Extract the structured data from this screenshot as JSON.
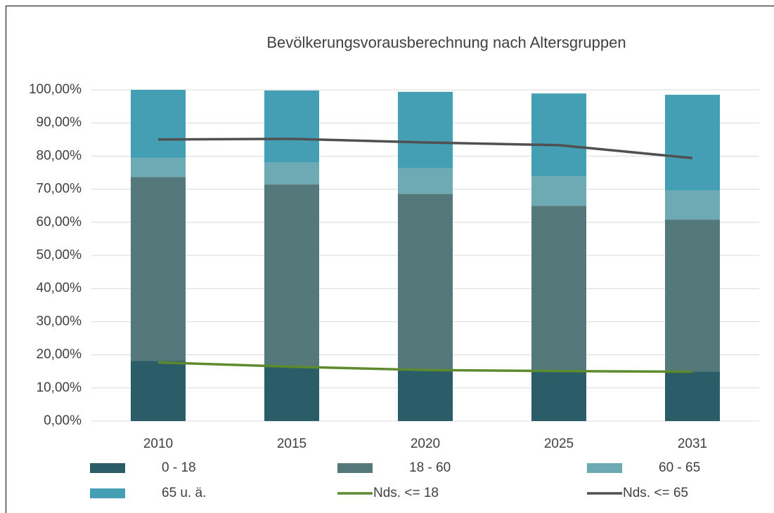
{
  "chart_data": {
    "type": "bar",
    "stacked": true,
    "title": "Bevölkerungsvorausberechnung nach Altersgruppen",
    "categories": [
      "2010",
      "2015",
      "2020",
      "2025",
      "2031"
    ],
    "series": [
      {
        "name": "0 - 18",
        "type": "bar",
        "color": "#2a5d67",
        "values": [
          18.2,
          16.5,
          15.4,
          15.0,
          15.0
        ]
      },
      {
        "name": "18 - 60",
        "type": "bar",
        "color": "#55797b",
        "values": [
          55.5,
          54.9,
          53.2,
          50.0,
          45.8
        ]
      },
      {
        "name": "60 - 65",
        "type": "bar",
        "color": "#6eaab3",
        "values": [
          5.7,
          6.6,
          7.7,
          8.9,
          8.9
        ]
      },
      {
        "name": "65 u. ä.",
        "type": "bar",
        "color": "#449fb5",
        "values": [
          20.6,
          21.8,
          23.1,
          25.0,
          28.8
        ]
      },
      {
        "name": "Nds. <= 18",
        "type": "line",
        "color": "#5e8a2e",
        "values": [
          17.7,
          16.4,
          15.4,
          15.1,
          14.9
        ]
      },
      {
        "name": "Nds. <= 65",
        "type": "line",
        "color": "#505050",
        "values": [
          85.0,
          85.2,
          84.1,
          83.3,
          79.4
        ]
      }
    ],
    "ylim": [
      0,
      100
    ],
    "yticks": [
      {
        "value": 0,
        "label": "0,00%"
      },
      {
        "value": 10,
        "label": "10,00%"
      },
      {
        "value": 20,
        "label": "20,00%"
      },
      {
        "value": 30,
        "label": "30,00%"
      },
      {
        "value": 40,
        "label": "40,00%"
      },
      {
        "value": 50,
        "label": "50,00%"
      },
      {
        "value": 60,
        "label": "60,00%"
      },
      {
        "value": 70,
        "label": "70,00%"
      },
      {
        "value": 80,
        "label": "80,00%"
      },
      {
        "value": 90,
        "label": "90,00%"
      },
      {
        "value": 100,
        "label": "100,00%"
      }
    ],
    "grid": true,
    "legend": "bottom"
  }
}
